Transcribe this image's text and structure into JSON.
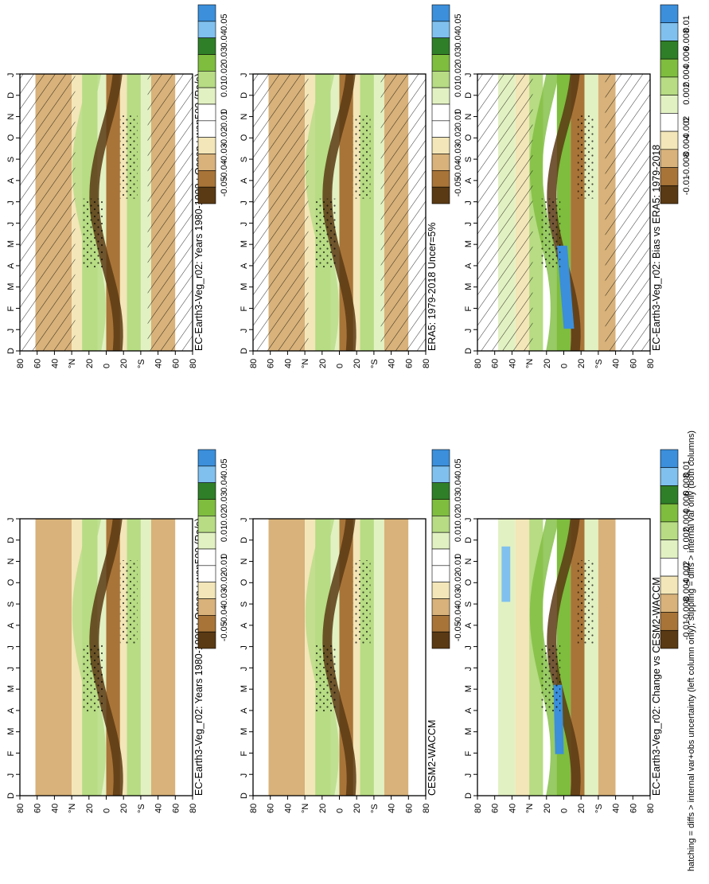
{
  "footer": "hatching = diffs > internal var+obs uncertainty (left column only); stippling = diffs > internal var only (both columns)",
  "month_ticks": [
    "D",
    "J",
    "F",
    "M",
    "A",
    "M",
    "J",
    "J",
    "A",
    "S",
    "O",
    "N",
    "D",
    "J"
  ],
  "lat_ticks": [
    "80",
    "60",
    "40",
    "°N",
    "20",
    "0",
    "20",
    "°S",
    "40",
    "60",
    "80"
  ],
  "colors": {
    "brown_dark": "#5a3a14",
    "brown": "#a87438",
    "tan": "#d8b27a",
    "cream": "#f3e6b8",
    "white": "#ffffff",
    "green_pale": "#e2f1c2",
    "green_light": "#b7dc84",
    "green": "#7ebd3e",
    "green_dark": "#2f7f28",
    "blue": "#3b8fdb",
    "blue_light": "#7fc0ee"
  },
  "colorbar_state": {
    "labels": [
      "0.05",
      "0.04",
      "0.03",
      "0.02",
      "0.01",
      "0",
      "-0.01",
      "-0.02",
      "-0.03",
      "-0.04",
      "-0.05"
    ]
  },
  "colorbar_diff": {
    "labels": [
      "0.01",
      "0.008",
      "0.006",
      "0.004",
      "0.002",
      "0",
      "-0.002",
      "-0.004",
      "-0.008",
      "-0.01"
    ]
  },
  "chart_data": [
    {
      "type": "heatmap",
      "title": "EC-Earth3-Veg_r02: Years 1980-1999 : Ocean : wap500 (Pa/s)",
      "x": [
        "D",
        "J",
        "F",
        "M",
        "A",
        "M",
        "J",
        "J",
        "A",
        "S",
        "O",
        "N",
        "D",
        "J"
      ],
      "y_range": [
        -90,
        90
      ],
      "colorbar": [
        0.05,
        0.04,
        0.03,
        0.02,
        0.01,
        0,
        -0.01,
        -0.02,
        -0.03,
        -0.04,
        -0.05
      ],
      "hatching": true,
      "stippling": true
    },
    {
      "type": "heatmap",
      "title": "EC-Earth3-Veg_r02: Years 1980-1999 : Ocean : wap500 (Pa/s)",
      "x": [
        "D",
        "J",
        "F",
        "M",
        "A",
        "M",
        "J",
        "J",
        "A",
        "S",
        "O",
        "N",
        "D",
        "J"
      ],
      "y_range": [
        -90,
        90
      ],
      "colorbar": [
        0.05,
        0.04,
        0.03,
        0.02,
        0.01,
        0,
        -0.01,
        -0.02,
        -0.03,
        -0.04,
        -0.05
      ],
      "hatching": false,
      "stippling": true
    },
    {
      "type": "heatmap",
      "title": "ERA5: 1979-2018 Uncer=5%",
      "x": [
        "D",
        "J",
        "F",
        "M",
        "A",
        "M",
        "J",
        "J",
        "A",
        "S",
        "O",
        "N",
        "D",
        "J"
      ],
      "y_range": [
        -90,
        90
      ],
      "colorbar": [
        0.05,
        0.04,
        0.03,
        0.02,
        0.01,
        0,
        -0.01,
        -0.02,
        -0.03,
        -0.04,
        -0.05
      ],
      "hatching": true,
      "stippling": true
    },
    {
      "type": "heatmap",
      "title": "CESM2-WACCM",
      "x": [
        "D",
        "J",
        "F",
        "M",
        "A",
        "M",
        "J",
        "J",
        "A",
        "S",
        "O",
        "N",
        "D",
        "J"
      ],
      "y_range": [
        -90,
        90
      ],
      "colorbar": [
        0.05,
        0.04,
        0.03,
        0.02,
        0.01,
        0,
        -0.01,
        -0.02,
        -0.03,
        -0.04,
        -0.05
      ],
      "hatching": false,
      "stippling": true
    },
    {
      "type": "heatmap",
      "title": "EC-Earth3-Veg_r02: Bias vs ERA5: 1979-2018",
      "x": [
        "D",
        "J",
        "F",
        "M",
        "A",
        "M",
        "J",
        "J",
        "A",
        "S",
        "O",
        "N",
        "D",
        "J"
      ],
      "y_range": [
        -90,
        90
      ],
      "colorbar": [
        0.01,
        0.008,
        0.006,
        0.004,
        0.002,
        0,
        -0.002,
        -0.004,
        -0.008,
        -0.01
      ],
      "hatching": true,
      "stippling": true
    },
    {
      "type": "heatmap",
      "title": "EC-Earth3-Veg_r02: Change vs CESM2-WACCM",
      "x": [
        "D",
        "J",
        "F",
        "M",
        "A",
        "M",
        "J",
        "J",
        "A",
        "S",
        "O",
        "N",
        "D",
        "J"
      ],
      "y_range": [
        -90,
        90
      ],
      "colorbar": [
        0.01,
        0.008,
        0.006,
        0.004,
        0.002,
        0,
        -0.002,
        -0.004,
        -0.008,
        -0.01
      ],
      "hatching": false,
      "stippling": true
    }
  ]
}
